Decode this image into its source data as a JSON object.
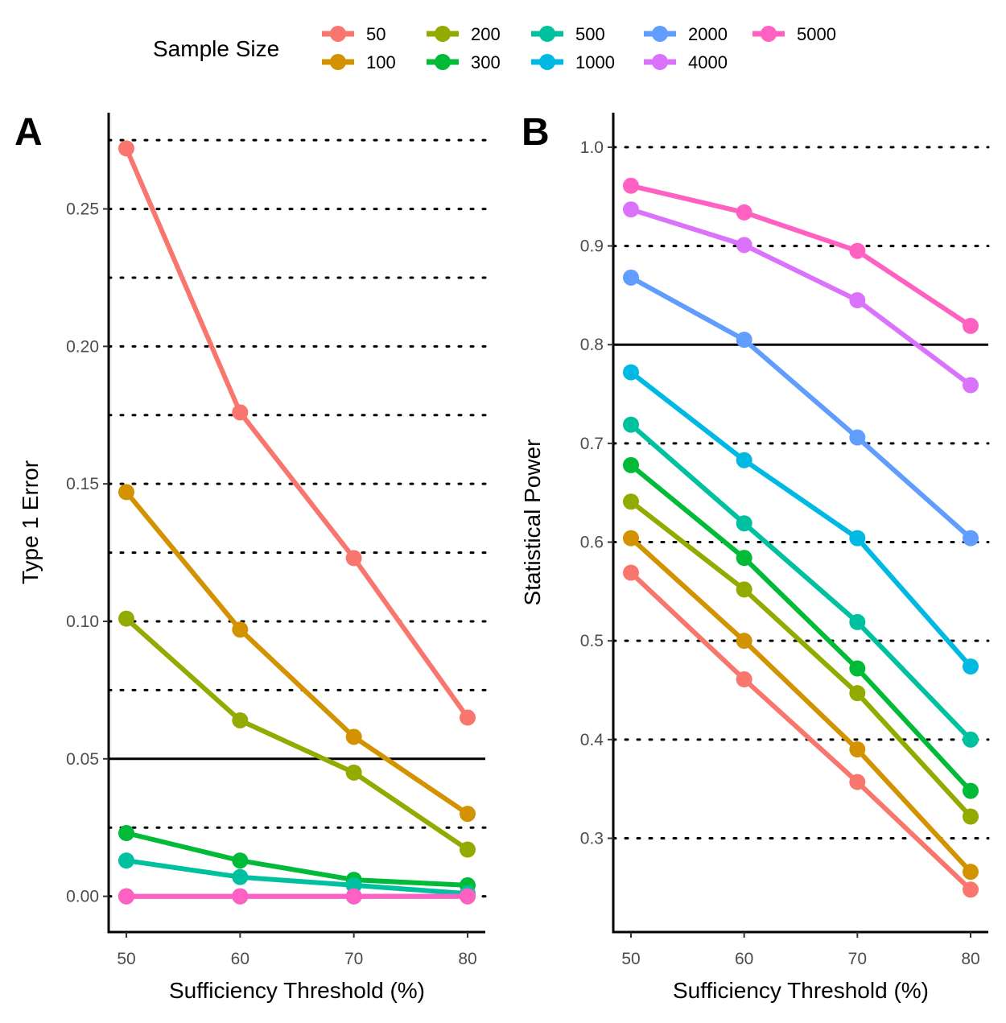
{
  "legend": {
    "title": "Sample Size",
    "entries": [
      {
        "label": "50",
        "color": "#F8766D"
      },
      {
        "label": "100",
        "color": "#D39200"
      },
      {
        "label": "200",
        "color": "#93AA00"
      },
      {
        "label": "300",
        "color": "#00BA38"
      },
      {
        "label": "500",
        "color": "#00C19F"
      },
      {
        "label": "1000",
        "color": "#00B9E3"
      },
      {
        "label": "2000",
        "color": "#619CFF"
      },
      {
        "label": "4000",
        "color": "#DB72FB"
      },
      {
        "label": "5000",
        "color": "#FF61C3"
      }
    ]
  },
  "chart_data": [
    {
      "type": "line",
      "panel_label": "A",
      "xlabel": "Sufficiency Threshold (%)",
      "ylabel": "Type 1 Error",
      "x": [
        50,
        60,
        70,
        80
      ],
      "xlim": [
        48.5,
        81.5
      ],
      "ylim": [
        -0.013,
        0.285
      ],
      "yticks": [
        {
          "value": 0.0,
          "label": "0.00"
        },
        {
          "value": 0.05,
          "label": "0.05"
        },
        {
          "value": 0.1,
          "label": "0.10"
        },
        {
          "value": 0.15,
          "label": "0.15"
        },
        {
          "value": 0.2,
          "label": "0.20"
        },
        {
          "value": 0.25,
          "label": "0.25"
        }
      ],
      "xticks": [
        "50",
        "60",
        "70",
        "80"
      ],
      "dotted_gridlines": [
        0.0,
        0.025,
        0.075,
        0.1,
        0.125,
        0.15,
        0.175,
        0.2,
        0.225,
        0.25,
        0.275
      ],
      "reference_line": 0.05,
      "series": [
        {
          "name": "50",
          "color": "#F8766D",
          "values": [
            0.272,
            0.176,
            0.123,
            0.065
          ]
        },
        {
          "name": "100",
          "color": "#D39200",
          "values": [
            0.147,
            0.097,
            0.058,
            0.03
          ]
        },
        {
          "name": "200",
          "color": "#93AA00",
          "values": [
            0.101,
            0.064,
            0.045,
            0.017
          ]
        },
        {
          "name": "300",
          "color": "#00BA38",
          "values": [
            0.023,
            0.013,
            0.006,
            0.004
          ]
        },
        {
          "name": "500",
          "color": "#00C19F",
          "values": [
            0.013,
            0.007,
            0.004,
            0.001
          ]
        },
        {
          "name": "1000",
          "color": "#00B9E3",
          "values": [
            0.0,
            0.0,
            0.0,
            0.0
          ]
        },
        {
          "name": "2000",
          "color": "#619CFF",
          "values": [
            0.0,
            0.0,
            0.0,
            0.0
          ]
        },
        {
          "name": "4000",
          "color": "#DB72FB",
          "values": [
            0.0,
            0.0,
            0.0,
            0.0
          ]
        },
        {
          "name": "5000",
          "color": "#FF61C3",
          "values": [
            0.0,
            0.0,
            0.0,
            0.0
          ]
        }
      ]
    },
    {
      "type": "line",
      "panel_label": "B",
      "xlabel": "Sufficiency Threshold (%)",
      "ylabel": "Statistical Power",
      "x": [
        50,
        60,
        70,
        80
      ],
      "xlim": [
        48.5,
        81.5
      ],
      "ylim": [
        0.205,
        1.035
      ],
      "yticks": [
        {
          "value": 0.3,
          "label": "0.3"
        },
        {
          "value": 0.4,
          "label": "0.4"
        },
        {
          "value": 0.5,
          "label": "0.5"
        },
        {
          "value": 0.6,
          "label": "0.6"
        },
        {
          "value": 0.7,
          "label": "0.7"
        },
        {
          "value": 0.8,
          "label": "0.8"
        },
        {
          "value": 0.9,
          "label": "0.9"
        },
        {
          "value": 1.0,
          "label": "1.0"
        }
      ],
      "xticks": [
        "50",
        "60",
        "70",
        "80"
      ],
      "dotted_gridlines": [
        0.3,
        0.4,
        0.5,
        0.6,
        0.7,
        0.9,
        1.0
      ],
      "reference_line": 0.8,
      "series": [
        {
          "name": "50",
          "color": "#F8766D",
          "values": [
            0.569,
            0.461,
            0.357,
            0.248
          ]
        },
        {
          "name": "100",
          "color": "#D39200",
          "values": [
            0.604,
            0.5,
            0.39,
            0.266
          ]
        },
        {
          "name": "200",
          "color": "#93AA00",
          "values": [
            0.641,
            0.552,
            0.447,
            0.322
          ]
        },
        {
          "name": "300",
          "color": "#00BA38",
          "values": [
            0.678,
            0.584,
            0.472,
            0.348
          ]
        },
        {
          "name": "500",
          "color": "#00C19F",
          "values": [
            0.719,
            0.619,
            0.519,
            0.4
          ]
        },
        {
          "name": "1000",
          "color": "#00B9E3",
          "values": [
            0.772,
            0.683,
            0.604,
            0.474
          ]
        },
        {
          "name": "2000",
          "color": "#619CFF",
          "values": [
            0.868,
            0.805,
            0.706,
            0.604
          ]
        },
        {
          "name": "4000",
          "color": "#DB72FB",
          "values": [
            0.937,
            0.901,
            0.845,
            0.759
          ]
        },
        {
          "name": "5000",
          "color": "#FF61C3",
          "values": [
            0.961,
            0.934,
            0.895,
            0.819
          ]
        }
      ]
    }
  ]
}
